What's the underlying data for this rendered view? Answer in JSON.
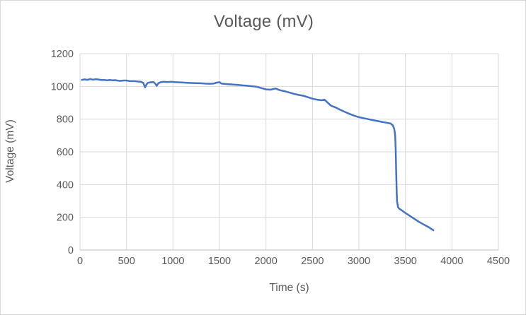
{
  "window": {
    "background": "#ffffff",
    "border_color": "#d9d9d9"
  },
  "chart_data": {
    "type": "line",
    "title": "Voltage (mV)",
    "xlabel": "Time (s)",
    "ylabel": "Voltage (mV)",
    "xlim": [
      0,
      4500
    ],
    "ylim": [
      0,
      1200
    ],
    "x_ticks": [
      0,
      500,
      1000,
      1500,
      2000,
      2500,
      3000,
      3500,
      4000,
      4500
    ],
    "y_ticks": [
      0,
      200,
      400,
      600,
      800,
      1000,
      1200
    ],
    "grid": true,
    "legend": "none",
    "colors": {
      "line": "#4472C4",
      "text": "#595959",
      "gridline": "#d9d9d9",
      "axis_line": "#bfbfbf"
    },
    "series": [
      {
        "name": "Voltage (mV)",
        "color": "#4472C4",
        "points": [
          [
            20,
            1040
          ],
          [
            50,
            1043
          ],
          [
            80,
            1040
          ],
          [
            110,
            1045
          ],
          [
            140,
            1041
          ],
          [
            170,
            1044
          ],
          [
            200,
            1042
          ],
          [
            230,
            1039
          ],
          [
            260,
            1040
          ],
          [
            290,
            1037
          ],
          [
            320,
            1039
          ],
          [
            350,
            1037
          ],
          [
            380,
            1038
          ],
          [
            410,
            1035
          ],
          [
            440,
            1034
          ],
          [
            470,
            1036
          ],
          [
            500,
            1036
          ],
          [
            530,
            1033
          ],
          [
            560,
            1032
          ],
          [
            590,
            1032
          ],
          [
            620,
            1030
          ],
          [
            650,
            1029
          ],
          [
            680,
            1022
          ],
          [
            700,
            994
          ],
          [
            715,
            1012
          ],
          [
            730,
            1022
          ],
          [
            760,
            1025
          ],
          [
            790,
            1027
          ],
          [
            810,
            1016
          ],
          [
            825,
            1004
          ],
          [
            845,
            1020
          ],
          [
            870,
            1026
          ],
          [
            900,
            1028
          ],
          [
            940,
            1026
          ],
          [
            980,
            1028
          ],
          [
            1020,
            1026
          ],
          [
            1060,
            1025
          ],
          [
            1100,
            1024
          ],
          [
            1150,
            1022
          ],
          [
            1200,
            1021
          ],
          [
            1250,
            1020
          ],
          [
            1300,
            1019
          ],
          [
            1350,
            1017
          ],
          [
            1400,
            1016
          ],
          [
            1440,
            1018
          ],
          [
            1470,
            1023
          ],
          [
            1500,
            1026
          ],
          [
            1520,
            1018
          ],
          [
            1560,
            1015
          ],
          [
            1600,
            1013
          ],
          [
            1650,
            1011
          ],
          [
            1700,
            1009
          ],
          [
            1750,
            1006
          ],
          [
            1800,
            1004
          ],
          [
            1850,
            1001
          ],
          [
            1900,
            998
          ],
          [
            1950,
            990
          ],
          [
            2000,
            982
          ],
          [
            2050,
            980
          ],
          [
            2100,
            987
          ],
          [
            2150,
            977
          ],
          [
            2200,
            971
          ],
          [
            2250,
            963
          ],
          [
            2300,
            955
          ],
          [
            2350,
            948
          ],
          [
            2400,
            943
          ],
          [
            2450,
            934
          ],
          [
            2500,
            925
          ],
          [
            2550,
            919
          ],
          [
            2600,
            915
          ],
          [
            2630,
            919
          ],
          [
            2660,
            903
          ],
          [
            2700,
            882
          ],
          [
            2750,
            871
          ],
          [
            2800,
            857
          ],
          [
            2850,
            844
          ],
          [
            2900,
            832
          ],
          [
            2950,
            821
          ],
          [
            3000,
            812
          ],
          [
            3050,
            806
          ],
          [
            3100,
            800
          ],
          [
            3150,
            794
          ],
          [
            3200,
            788
          ],
          [
            3250,
            783
          ],
          [
            3300,
            778
          ],
          [
            3340,
            773
          ],
          [
            3365,
            762
          ],
          [
            3380,
            740
          ],
          [
            3390,
            700
          ],
          [
            3395,
            620
          ],
          [
            3400,
            500
          ],
          [
            3405,
            380
          ],
          [
            3410,
            300
          ],
          [
            3420,
            262
          ],
          [
            3435,
            252
          ],
          [
            3460,
            243
          ],
          [
            3500,
            226
          ],
          [
            3550,
            208
          ],
          [
            3600,
            189
          ],
          [
            3650,
            171
          ],
          [
            3700,
            155
          ],
          [
            3750,
            140
          ],
          [
            3800,
            121
          ]
        ]
      }
    ]
  }
}
